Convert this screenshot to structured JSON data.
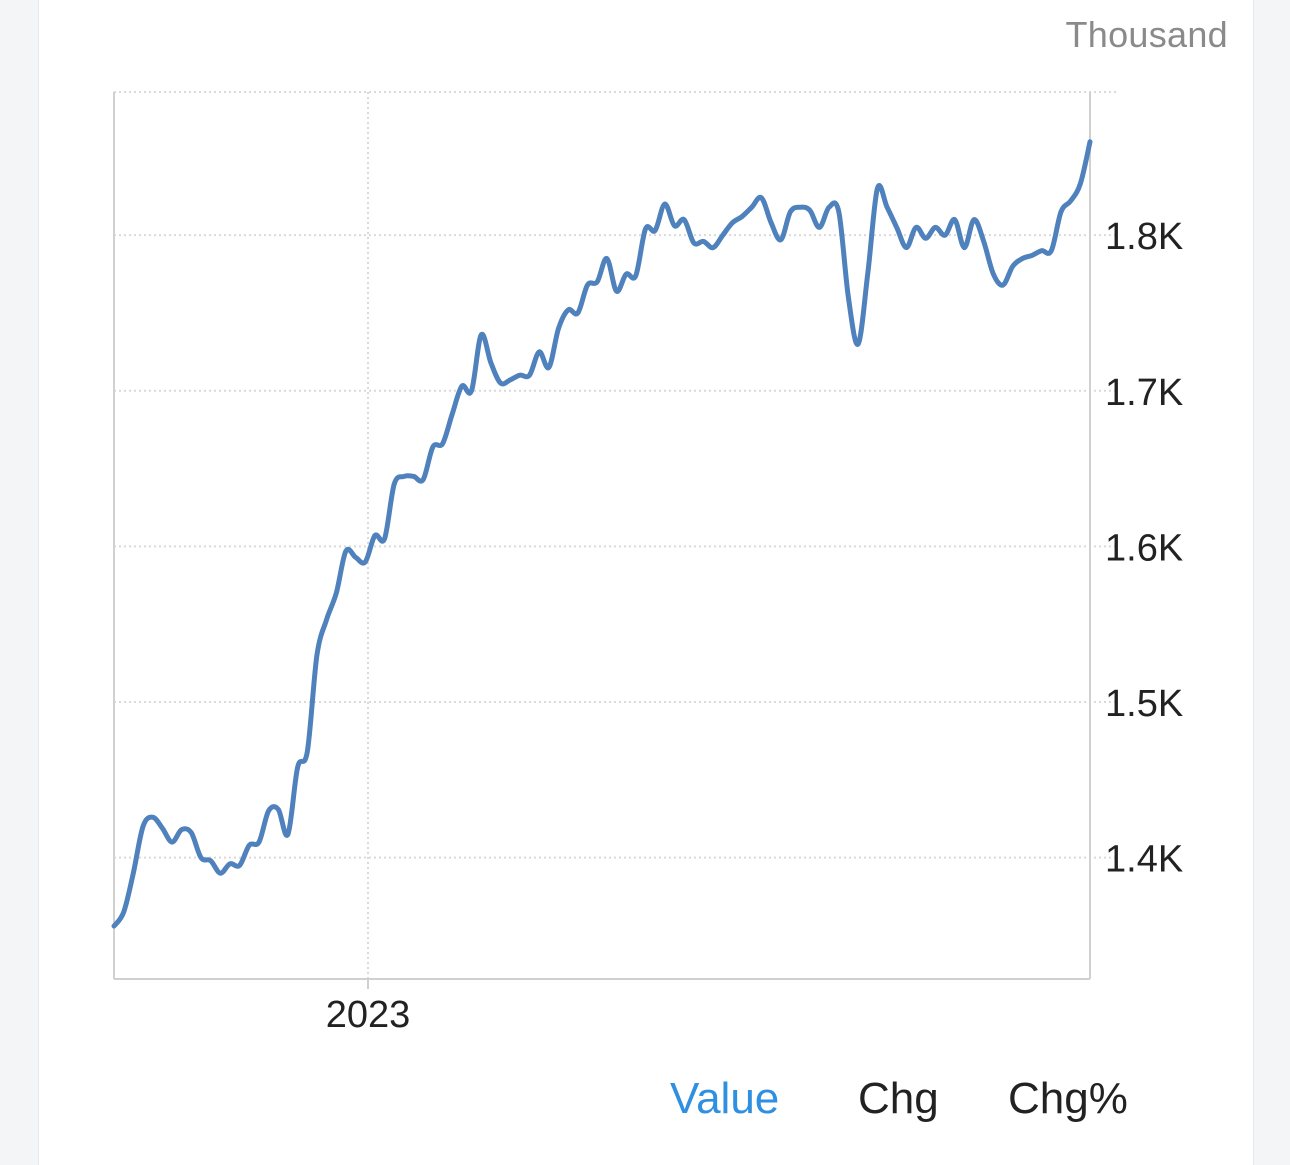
{
  "unit_label": "Thousand",
  "toggles": [
    {
      "label": "Value",
      "active": true
    },
    {
      "label": "Chg",
      "active": false
    },
    {
      "label": "Chg%",
      "active": false
    }
  ],
  "colors": {
    "line": "#4f81bd",
    "active_toggle": "#2f8fe0",
    "grid": "#d9d9d9",
    "axis_text": "#222222"
  },
  "chart_data": {
    "type": "line",
    "title": "",
    "xlabel": "",
    "ylabel": "Thousand",
    "x_tick_labels": [
      "2023"
    ],
    "y_tick_labels": [
      "1.4K",
      "1.5K",
      "1.6K",
      "1.7K",
      "1.8K"
    ],
    "y_ticks": [
      1400,
      1500,
      1600,
      1700,
      1800
    ],
    "ylim": [
      1322,
      1892
    ],
    "y_axis_position": "right",
    "grid": true,
    "series": [
      {
        "values": [
          1356,
          1365,
          1390,
          1420,
          1426,
          1419,
          1410,
          1418,
          1416,
          1400,
          1398,
          1390,
          1396,
          1395,
          1408,
          1410,
          1430,
          1431,
          1415,
          1458,
          1468,
          1530,
          1553,
          1570,
          1597,
          1593,
          1590,
          1607,
          1605,
          1640,
          1645,
          1645,
          1643,
          1664,
          1666,
          1685,
          1703,
          1700,
          1736,
          1718,
          1705,
          1707,
          1710,
          1710,
          1725,
          1715,
          1740,
          1752,
          1750,
          1768,
          1770,
          1785,
          1764,
          1775,
          1774,
          1804,
          1803,
          1820,
          1806,
          1810,
          1795,
          1796,
          1792,
          1800,
          1808,
          1812,
          1818,
          1824,
          1808,
          1797,
          1815,
          1818,
          1816,
          1805,
          1818,
          1815,
          1760,
          1730,
          1775,
          1830,
          1818,
          1805,
          1792,
          1805,
          1798,
          1805,
          1800,
          1810,
          1792,
          1810,
          1796,
          1775,
          1768,
          1780,
          1785,
          1787,
          1790,
          1790,
          1815,
          1822,
          1833,
          1860
        ]
      }
    ]
  }
}
